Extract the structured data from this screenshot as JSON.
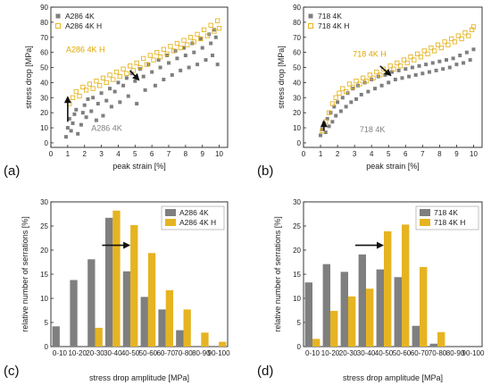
{
  "colors": {
    "grey": "#7f7f7f",
    "gold": "#e6b422",
    "arrow": "#111111"
  },
  "chart_data": [
    {
      "id": "a",
      "type": "scatter",
      "panel_label": "(a)",
      "xlabel": "peak strain [%]",
      "ylabel": "stress drop [MPa]",
      "xlim": [
        0,
        10.5
      ],
      "ylim": [
        -3,
        90
      ],
      "xticks": [
        0,
        1,
        2,
        3,
        4,
        5,
        6,
        7,
        8,
        9,
        10
      ],
      "yticks": [
        0,
        10,
        20,
        30,
        40,
        50,
        60,
        70,
        80,
        90
      ],
      "legend_position": "top-left",
      "series": [
        {
          "name": "A286 4K",
          "marker": "filled-square",
          "color": "#7f7f7f",
          "points": [
            [
              0.9,
              4
            ],
            [
              1.0,
              10
            ],
            [
              1.1,
              16
            ],
            [
              1.2,
              8
            ],
            [
              1.3,
              13
            ],
            [
              1.4,
              19
            ],
            [
              1.5,
              22
            ],
            [
              1.6,
              6
            ],
            [
              1.8,
              12
            ],
            [
              1.9,
              20
            ],
            [
              2.0,
              25
            ],
            [
              2.1,
              17
            ],
            [
              2.2,
              29
            ],
            [
              2.4,
              21
            ],
            [
              2.5,
              30
            ],
            [
              2.7,
              15
            ],
            [
              2.8,
              26
            ],
            [
              3.0,
              33
            ],
            [
              3.1,
              18
            ],
            [
              3.3,
              28
            ],
            [
              3.5,
              36
            ],
            [
              3.6,
              24
            ],
            [
              3.8,
              34
            ],
            [
              4.0,
              40
            ],
            [
              4.1,
              27
            ],
            [
              4.3,
              38
            ],
            [
              4.5,
              43
            ],
            [
              4.6,
              31
            ],
            [
              4.8,
              46
            ],
            [
              5.0,
              41
            ],
            [
              5.1,
              26
            ],
            [
              5.3,
              49
            ],
            [
              5.5,
              44
            ],
            [
              5.6,
              35
            ],
            [
              5.8,
              52
            ],
            [
              6.0,
              47
            ],
            [
              6.2,
              38
            ],
            [
              6.4,
              55
            ],
            [
              6.5,
              50
            ],
            [
              6.7,
              42
            ],
            [
              6.9,
              58
            ],
            [
              7.0,
              53
            ],
            [
              7.2,
              45
            ],
            [
              7.4,
              61
            ],
            [
              7.5,
              56
            ],
            [
              7.7,
              48
            ],
            [
              7.9,
              63
            ],
            [
              8.0,
              58
            ],
            [
              8.2,
              50
            ],
            [
              8.4,
              66
            ],
            [
              8.5,
              60
            ],
            [
              8.7,
              52
            ],
            [
              8.9,
              69
            ],
            [
              9.0,
              63
            ],
            [
              9.2,
              55
            ],
            [
              9.4,
              72
            ],
            [
              9.5,
              66
            ],
            [
              9.6,
              58
            ],
            [
              9.7,
              75
            ],
            [
              9.8,
              70
            ],
            [
              9.9,
              52
            ]
          ]
        },
        {
          "name": "A286 4K H",
          "marker": "open-square",
          "color": "#e6b422",
          "points": [
            [
              1.1,
              26
            ],
            [
              1.3,
              30
            ],
            [
              1.5,
              34
            ],
            [
              1.7,
              31
            ],
            [
              1.9,
              37
            ],
            [
              2.1,
              35
            ],
            [
              2.3,
              39
            ],
            [
              2.5,
              36
            ],
            [
              2.7,
              41
            ],
            [
              2.9,
              38
            ],
            [
              3.1,
              43
            ],
            [
              3.3,
              40
            ],
            [
              3.5,
              45
            ],
            [
              3.7,
              42
            ],
            [
              3.9,
              47
            ],
            [
              4.1,
              44
            ],
            [
              4.3,
              49
            ],
            [
              4.5,
              46
            ],
            [
              4.7,
              51
            ],
            [
              4.9,
              48
            ],
            [
              5.1,
              53
            ],
            [
              5.3,
              50
            ],
            [
              5.5,
              56
            ],
            [
              5.7,
              52
            ],
            [
              5.9,
              58
            ],
            [
              6.1,
              55
            ],
            [
              6.3,
              60
            ],
            [
              6.5,
              57
            ],
            [
              6.7,
              62
            ],
            [
              6.9,
              59
            ],
            [
              7.1,
              64
            ],
            [
              7.3,
              61
            ],
            [
              7.5,
              66
            ],
            [
              7.7,
              63
            ],
            [
              7.9,
              68
            ],
            [
              8.1,
              65
            ],
            [
              8.3,
              70
            ],
            [
              8.5,
              67
            ],
            [
              8.7,
              72
            ],
            [
              8.9,
              69
            ],
            [
              9.1,
              75
            ],
            [
              9.3,
              71
            ],
            [
              9.5,
              78
            ],
            [
              9.7,
              74
            ],
            [
              9.9,
              81
            ],
            [
              10.0,
              76
            ]
          ]
        }
      ],
      "annotations": [
        {
          "text": "A286 4K H",
          "x": 0.9,
          "y": 60,
          "color": "#e0a800"
        },
        {
          "text": "A286 4K",
          "x": 2.4,
          "y": 8,
          "color": "#808080"
        }
      ],
      "arrows": [
        {
          "from": [
            1.0,
            14
          ],
          "to": [
            1.0,
            30
          ]
        },
        {
          "from": [
            4.7,
            48
          ],
          "to": [
            5.2,
            42
          ]
        }
      ]
    },
    {
      "id": "b",
      "type": "scatter",
      "panel_label": "(b)",
      "xlabel": "peak strain [%]",
      "ylabel": "stress drop [MPa]",
      "xlim": [
        0,
        10.5
      ],
      "ylim": [
        -3,
        90
      ],
      "xticks": [
        0,
        1,
        2,
        3,
        4,
        5,
        6,
        7,
        8,
        9,
        10
      ],
      "yticks": [
        0,
        10,
        20,
        30,
        40,
        50,
        60,
        70,
        80,
        90
      ],
      "legend_position": "top-left",
      "series": [
        {
          "name": "718 4K",
          "marker": "filled-square",
          "color": "#7f7f7f",
          "points": [
            [
              1.0,
              5
            ],
            [
              1.1,
              9
            ],
            [
              1.2,
              13
            ],
            [
              1.3,
              7
            ],
            [
              1.4,
              16
            ],
            [
              1.5,
              11
            ],
            [
              1.6,
              20
            ],
            [
              1.7,
              14
            ],
            [
              1.8,
              24
            ],
            [
              1.9,
              18
            ],
            [
              2.0,
              27
            ],
            [
              2.2,
              21
            ],
            [
              2.3,
              30
            ],
            [
              2.5,
              24
            ],
            [
              2.6,
              33
            ],
            [
              2.8,
              27
            ],
            [
              2.9,
              36
            ],
            [
              3.1,
              29
            ],
            [
              3.2,
              38
            ],
            [
              3.4,
              32
            ],
            [
              3.6,
              40
            ],
            [
              3.8,
              34
            ],
            [
              4.0,
              42
            ],
            [
              4.2,
              36
            ],
            [
              4.4,
              44
            ],
            [
              4.6,
              38
            ],
            [
              4.8,
              45
            ],
            [
              5.0,
              40
            ],
            [
              5.2,
              47
            ],
            [
              5.4,
              42
            ],
            [
              5.6,
              48
            ],
            [
              5.8,
              43
            ],
            [
              6.0,
              49
            ],
            [
              6.2,
              44
            ],
            [
              6.4,
              50
            ],
            [
              6.6,
              45
            ],
            [
              6.8,
              51
            ],
            [
              7.0,
              46
            ],
            [
              7.2,
              52
            ],
            [
              7.4,
              47
            ],
            [
              7.6,
              53
            ],
            [
              7.8,
              48
            ],
            [
              8.0,
              54
            ],
            [
              8.2,
              49
            ],
            [
              8.4,
              55
            ],
            [
              8.6,
              50
            ],
            [
              8.8,
              56
            ],
            [
              9.0,
              52
            ],
            [
              9.2,
              58
            ],
            [
              9.4,
              53
            ],
            [
              9.6,
              60
            ],
            [
              9.8,
              55
            ],
            [
              10.0,
              62
            ]
          ]
        },
        {
          "name": "718 4K H",
          "marker": "open-square",
          "color": "#e6b422",
          "points": [
            [
              1.1,
              8
            ],
            [
              1.3,
              14
            ],
            [
              1.5,
              20
            ],
            [
              1.7,
              26
            ],
            [
              1.9,
              30
            ],
            [
              2.1,
              33
            ],
            [
              2.3,
              36
            ],
            [
              2.5,
              34
            ],
            [
              2.7,
              39
            ],
            [
              2.9,
              37
            ],
            [
              3.1,
              41
            ],
            [
              3.3,
              39
            ],
            [
              3.5,
              43
            ],
            [
              3.7,
              41
            ],
            [
              3.9,
              45
            ],
            [
              4.1,
              43
            ],
            [
              4.3,
              47
            ],
            [
              4.5,
              45
            ],
            [
              4.7,
              49
            ],
            [
              4.9,
              47
            ],
            [
              5.1,
              51
            ],
            [
              5.3,
              49
            ],
            [
              5.5,
              53
            ],
            [
              5.7,
              51
            ],
            [
              5.9,
              55
            ],
            [
              6.1,
              53
            ],
            [
              6.3,
              57
            ],
            [
              6.5,
              55
            ],
            [
              6.7,
              59
            ],
            [
              6.9,
              57
            ],
            [
              7.1,
              61
            ],
            [
              7.3,
              59
            ],
            [
              7.5,
              63
            ],
            [
              7.7,
              61
            ],
            [
              7.9,
              65
            ],
            [
              8.1,
              63
            ],
            [
              8.3,
              67
            ],
            [
              8.5,
              65
            ],
            [
              8.7,
              69
            ],
            [
              8.9,
              67
            ],
            [
              9.1,
              71
            ],
            [
              9.3,
              69
            ],
            [
              9.5,
              73
            ],
            [
              9.7,
              71
            ],
            [
              9.9,
              75
            ],
            [
              10.0,
              77
            ]
          ]
        }
      ],
      "annotations": [
        {
          "text": "718 4K H",
          "x": 2.9,
          "y": 57,
          "color": "#e0a800"
        },
        {
          "text": "718 4K",
          "x": 3.3,
          "y": 7,
          "color": "#808080"
        }
      ],
      "arrows": [
        {
          "from": [
            1.2,
            8
          ],
          "to": [
            1.2,
            14
          ]
        },
        {
          "from": [
            4.5,
            51
          ],
          "to": [
            5.1,
            45
          ]
        }
      ]
    },
    {
      "id": "c",
      "type": "bar",
      "panel_label": "(c)",
      "xlabel": "stress drop amplitude [MPa]",
      "ylabel": "relative number of serrations [%]",
      "ylim": [
        0,
        30
      ],
      "yticks": [
        0,
        5,
        10,
        15,
        20,
        25,
        30
      ],
      "categories": [
        "0-10",
        "10-20",
        "20-30",
        "30-40",
        "40-50",
        "50-60",
        "60-70",
        "70-80",
        "80-90",
        "90-100"
      ],
      "legend_position": "top-right",
      "series": [
        {
          "name": "A286 4K",
          "color": "#7f7f7f",
          "values": [
            4.2,
            13.8,
            18.1,
            26.7,
            15.6,
            10.3,
            7.7,
            3.4,
            0.0,
            0.0
          ]
        },
        {
          "name": "A286 4K H",
          "color": "#e6b422",
          "values": [
            0.0,
            0.0,
            3.9,
            28.2,
            25.2,
            19.4,
            11.7,
            7.7,
            2.9,
            1.0
          ]
        }
      ],
      "arrow": {
        "from_category": 2.9,
        "to_category": 4.4,
        "y": 21
      }
    },
    {
      "id": "d",
      "type": "bar",
      "panel_label": "(d)",
      "xlabel": "stress drop amplitude [MPa]",
      "ylabel": "relative number of serrations [%]",
      "ylim": [
        0,
        30
      ],
      "yticks": [
        0,
        5,
        10,
        15,
        20,
        25,
        30
      ],
      "categories": [
        "0-10",
        "10-20",
        "20-30",
        "30-40",
        "40-50",
        "50-60",
        "60-70",
        "70-80",
        "80-90",
        "90-100"
      ],
      "legend_position": "top-right",
      "series": [
        {
          "name": "718 4K",
          "color": "#7f7f7f",
          "values": [
            13.3,
            17.1,
            15.5,
            19.1,
            16.0,
            14.4,
            4.3,
            0.6,
            0.0,
            0.0
          ]
        },
        {
          "name": "718 4K H",
          "color": "#e6b422",
          "values": [
            1.6,
            7.4,
            10.4,
            12.0,
            23.9,
            25.3,
            16.5,
            3.0,
            0.0,
            0.0
          ]
        }
      ],
      "arrow": {
        "from_category": 2.9,
        "to_category": 4.4,
        "y": 21
      }
    }
  ]
}
